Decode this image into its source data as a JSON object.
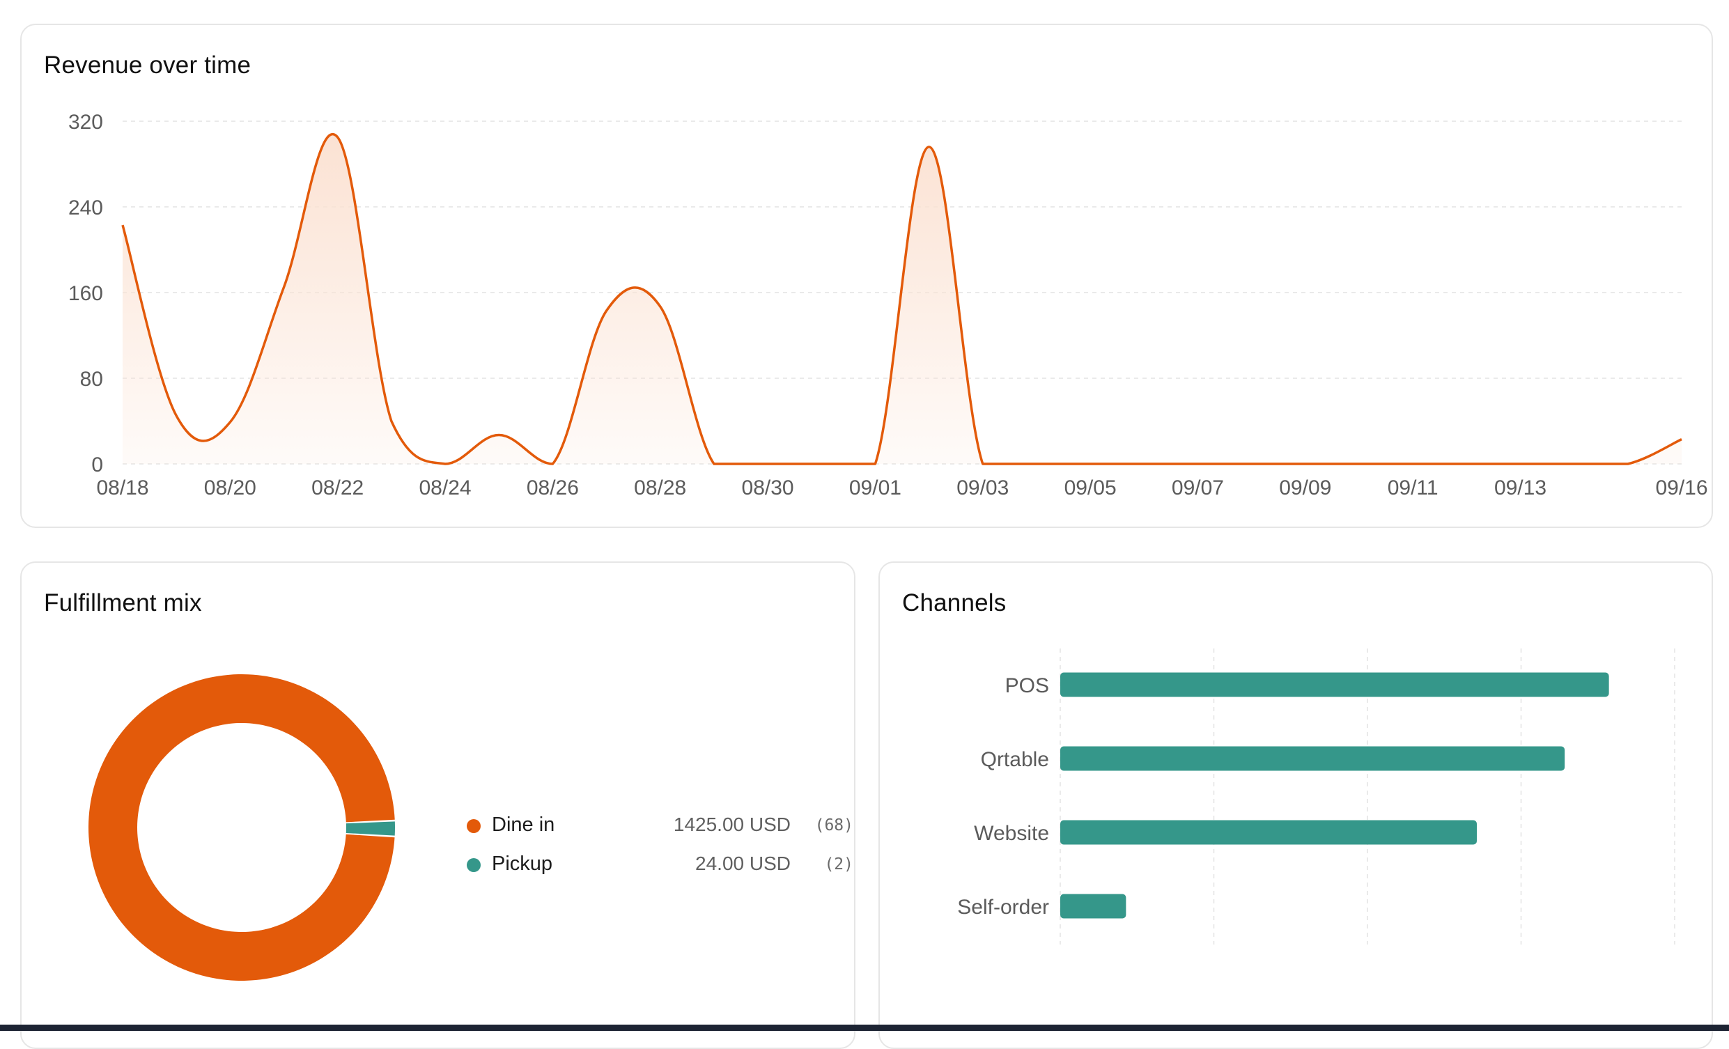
{
  "colors": {
    "accent": "#e35a0a",
    "accent_fill": "#fbe2d3",
    "teal": "#35978a",
    "grid": "#e3e3e3",
    "axis_text": "#5b5b5b"
  },
  "revenue": {
    "title": "Revenue over time",
    "chart_data": {
      "type": "area",
      "x": [
        "08/18",
        "08/19",
        "08/20",
        "08/21",
        "08/22",
        "08/23",
        "08/24",
        "08/25",
        "08/26",
        "08/27",
        "08/28",
        "08/29",
        "08/30",
        "08/31",
        "09/01",
        "09/02",
        "09/03",
        "09/04",
        "09/05",
        "09/06",
        "09/07",
        "09/08",
        "09/09",
        "09/10",
        "09/11",
        "09/12",
        "09/13",
        "09/14",
        "09/15",
        "09/16"
      ],
      "y": [
        223,
        45,
        39,
        165,
        305,
        40,
        0,
        27,
        0,
        143,
        147,
        0,
        0,
        0,
        0,
        296,
        0,
        0,
        0,
        0,
        0,
        0,
        0,
        0,
        0,
        0,
        0,
        0,
        0,
        23
      ],
      "x_tick_labels": [
        "08/18",
        "08/20",
        "08/22",
        "08/24",
        "08/26",
        "08/28",
        "08/30",
        "09/01",
        "09/03",
        "09/05",
        "09/07",
        "09/09",
        "09/11",
        "09/13",
        "09/16"
      ],
      "y_ticks": [
        0,
        80,
        160,
        240,
        320
      ],
      "ylim": [
        0,
        320
      ],
      "grid": true
    }
  },
  "fulfillment": {
    "title": "Fulfillment mix",
    "chart_data": {
      "type": "pie",
      "donut": true,
      "slices": [
        {
          "label": "Dine in",
          "value": 1425.0,
          "display": "1425.00 USD",
          "count": "(68)",
          "color": "#e35a0a"
        },
        {
          "label": "Pickup",
          "value": 24.0,
          "display": "24.00 USD",
          "count": "(2)",
          "color": "#35978a"
        }
      ]
    }
  },
  "channels": {
    "title": "Channels",
    "chart_data": {
      "type": "bar",
      "orientation": "horizontal",
      "categories": [
        "POS",
        "Qrtable",
        "Website",
        "Self-order"
      ],
      "values": [
        893,
        821,
        678,
        107
      ],
      "xlim": [
        0,
        1000
      ],
      "grid": true
    }
  }
}
